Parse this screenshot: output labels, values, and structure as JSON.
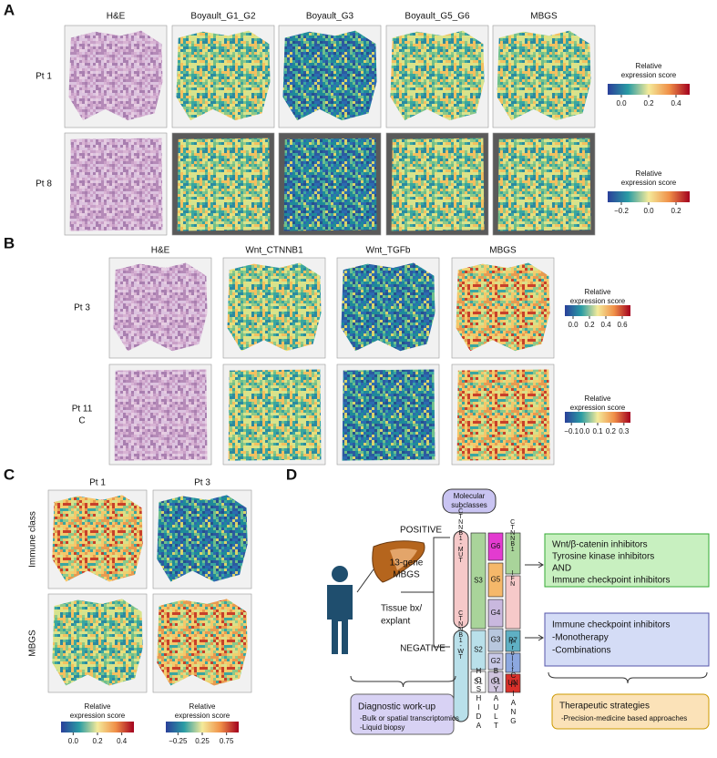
{
  "panel_a": {
    "label": "A",
    "columns": [
      "H&E",
      "Boyault_G1_G2",
      "Boyault_G3",
      "Boyault_G5_G6",
      "MBGS"
    ],
    "rows": [
      {
        "label": [
          "Pt 1"
        ],
        "legend_title": [
          "Relative",
          "expression score"
        ],
        "legend_ticks": [
          "0.0",
          "0.2",
          "0.4"
        ]
      },
      {
        "label": [
          "Pt 8"
        ],
        "legend_title": [
          "Relative",
          "expression score"
        ],
        "legend_ticks": [
          "−0.2",
          "0.0",
          "0.2"
        ]
      }
    ]
  },
  "panel_b": {
    "label": "B",
    "columns": [
      "H&E",
      "Wnt_CTNNB1",
      "Wnt_TGFb",
      "MBGS"
    ],
    "rows": [
      {
        "label": [
          "Pt 3"
        ],
        "legend_title": [
          "Relative",
          "expression score"
        ],
        "legend_ticks": [
          "0.0",
          "0.2",
          "0.4",
          "0.6"
        ]
      },
      {
        "label": [
          "Pt 11",
          "C"
        ],
        "legend_title": [
          "Relative",
          "expression score"
        ],
        "legend_ticks": [
          "−0.1",
          "0.0",
          "0.1",
          "0.2",
          "0.3"
        ]
      }
    ]
  },
  "panel_c": {
    "label": "C",
    "columns": [
      "Pt 1",
      "Pt 3"
    ],
    "rows": [
      "Immune class",
      "MBGS"
    ],
    "legends": [
      {
        "title": [
          "Relative",
          "expression score"
        ],
        "ticks": [
          "0.0",
          "0.2",
          "0.4"
        ]
      },
      {
        "title": [
          "Relative",
          "expression score"
        ],
        "ticks": [
          "−0.25",
          "0.25",
          "0.75"
        ]
      }
    ]
  },
  "panel_d": {
    "label": "D",
    "molecular_subclasses": [
      "Molecular",
      "subclasses"
    ],
    "positive": "POSITIVE",
    "negative": "NEGATIVE",
    "gene_signature": [
      "13-gene",
      "MBGS"
    ],
    "sample": [
      "Tissue bx/",
      "explant"
    ],
    "ctnnb1_mut": "CTNNB1-MUT",
    "ctnnb1_wt": "CTNNB1-WT",
    "hoshida": {
      "name": "HOSHIDA",
      "classes": [
        "S3",
        "S2",
        "S1"
      ]
    },
    "boyault": {
      "name": "BOYAULT",
      "classes": [
        "G6",
        "G5",
        "G4",
        "G3",
        "G2",
        "G1"
      ]
    },
    "chiang": {
      "name": "CHIANG",
      "classes": [
        "CTNNB1",
        "IFN",
        "P7",
        "Prolif",
        "UN"
      ]
    },
    "positive_box": [
      "Wnt/β-catenin inhibitors",
      "Tyrosine kinase inhibitors",
      "AND",
      "Immune checkpoint inhibitors"
    ],
    "negative_box": [
      "Immune checkpoint inhibitors",
      "-Monotherapy",
      "-Combinations"
    ],
    "diagnostic": {
      "title": "Diagnostic work-up",
      "items": [
        "-Bulk or spatial transcriptomics",
        "-Liquid biopsy"
      ]
    },
    "therapeutic": {
      "title": "Therapeutic strategies",
      "items": [
        "-Precision-medicine based approaches"
      ]
    }
  }
}
